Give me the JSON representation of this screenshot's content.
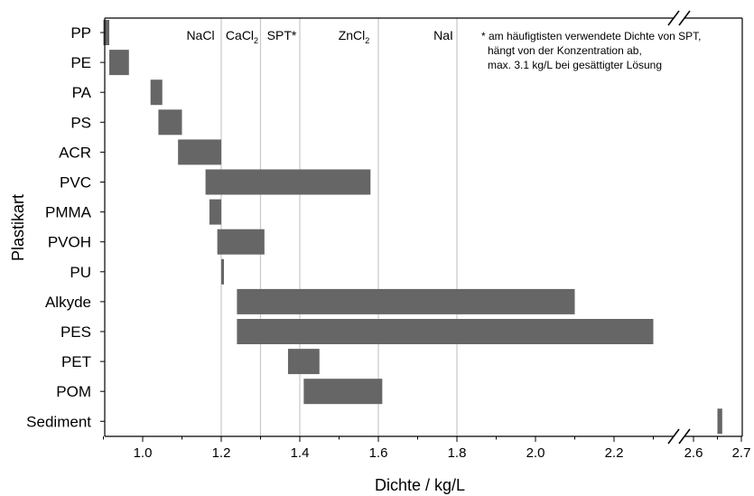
{
  "chart_data": {
    "type": "bar",
    "orientation": "horizontal-range",
    "xlabel": "Dichte / kg/L",
    "ylabel": "Plastikart",
    "xticks_left": [
      "1.0",
      "1.2",
      "1.4",
      "1.6",
      "1.8",
      "2.0",
      "2.2"
    ],
    "xticks_right": [
      "2.6",
      "2.7"
    ],
    "axis_break": true,
    "bar_color": "#666666",
    "categories": [
      "PP",
      "PE",
      "PA",
      "PS",
      "ACR",
      "PVC",
      "PMMA",
      "PVOH",
      "PU",
      "Alkyde",
      "PES",
      "PET",
      "POM",
      "Sediment"
    ],
    "ranges": [
      [
        0.9,
        0.915
      ],
      [
        0.915,
        0.965
      ],
      [
        1.02,
        1.05
      ],
      [
        1.04,
        1.1
      ],
      [
        1.09,
        1.2
      ],
      [
        1.16,
        1.58
      ],
      [
        1.17,
        1.2
      ],
      [
        1.19,
        1.31
      ],
      [
        1.2,
        1.205
      ],
      [
        1.24,
        2.1
      ],
      [
        1.24,
        2.3
      ],
      [
        1.37,
        1.45
      ],
      [
        1.41,
        1.61
      ],
      [
        2.65,
        2.66
      ]
    ],
    "reference_lines": [
      {
        "label": "NaCl",
        "sub": "",
        "value": 1.2
      },
      {
        "label": "CaCl",
        "sub": "2",
        "value": 1.3
      },
      {
        "label": "SPT*",
        "sub": "",
        "value": 1.4
      },
      {
        "label": "ZnCl",
        "sub": "2",
        "value": 1.6
      },
      {
        "label": "NaI",
        "sub": "",
        "value": 1.8
      }
    ],
    "footnote": [
      "* am häufigtisten verwendete Dichte von SPT,",
      "hängt von der Konzentration ab,",
      "max. 3.1 kg/L bei gesättigter Lösung"
    ]
  }
}
